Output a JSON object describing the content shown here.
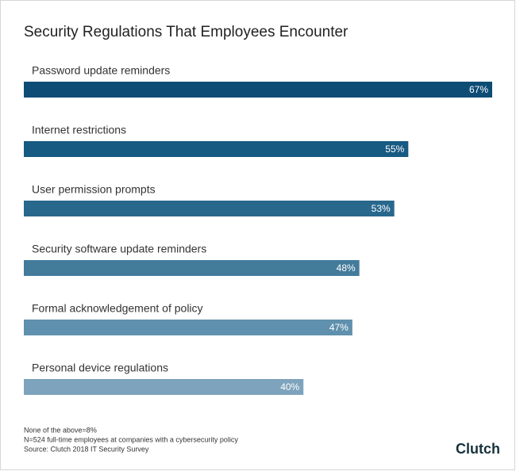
{
  "chart_data": {
    "type": "bar",
    "orientation": "horizontal",
    "title": "Security Regulations That Employees Encounter",
    "categories": [
      "Password update reminders",
      "Internet restrictions",
      "User permission prompts",
      "Security software update reminders",
      "Formal acknowledgement of policy",
      "Personal device regulations"
    ],
    "values": [
      67,
      55,
      53,
      48,
      47,
      40
    ],
    "value_labels": [
      "67%",
      "55%",
      "53%",
      "48%",
      "47%",
      "40%"
    ],
    "colors": [
      "#0d4c74",
      "#175a82",
      "#28688d",
      "#437b9b",
      "#5f90ad",
      "#7ea3bc"
    ],
    "notes": [
      "None of the above=8%",
      "N=524 full-time employees at companies with a cybersecurity policy",
      "Source: Clutch 2018 IT Security Survey"
    ],
    "logo": "Clutch"
  }
}
